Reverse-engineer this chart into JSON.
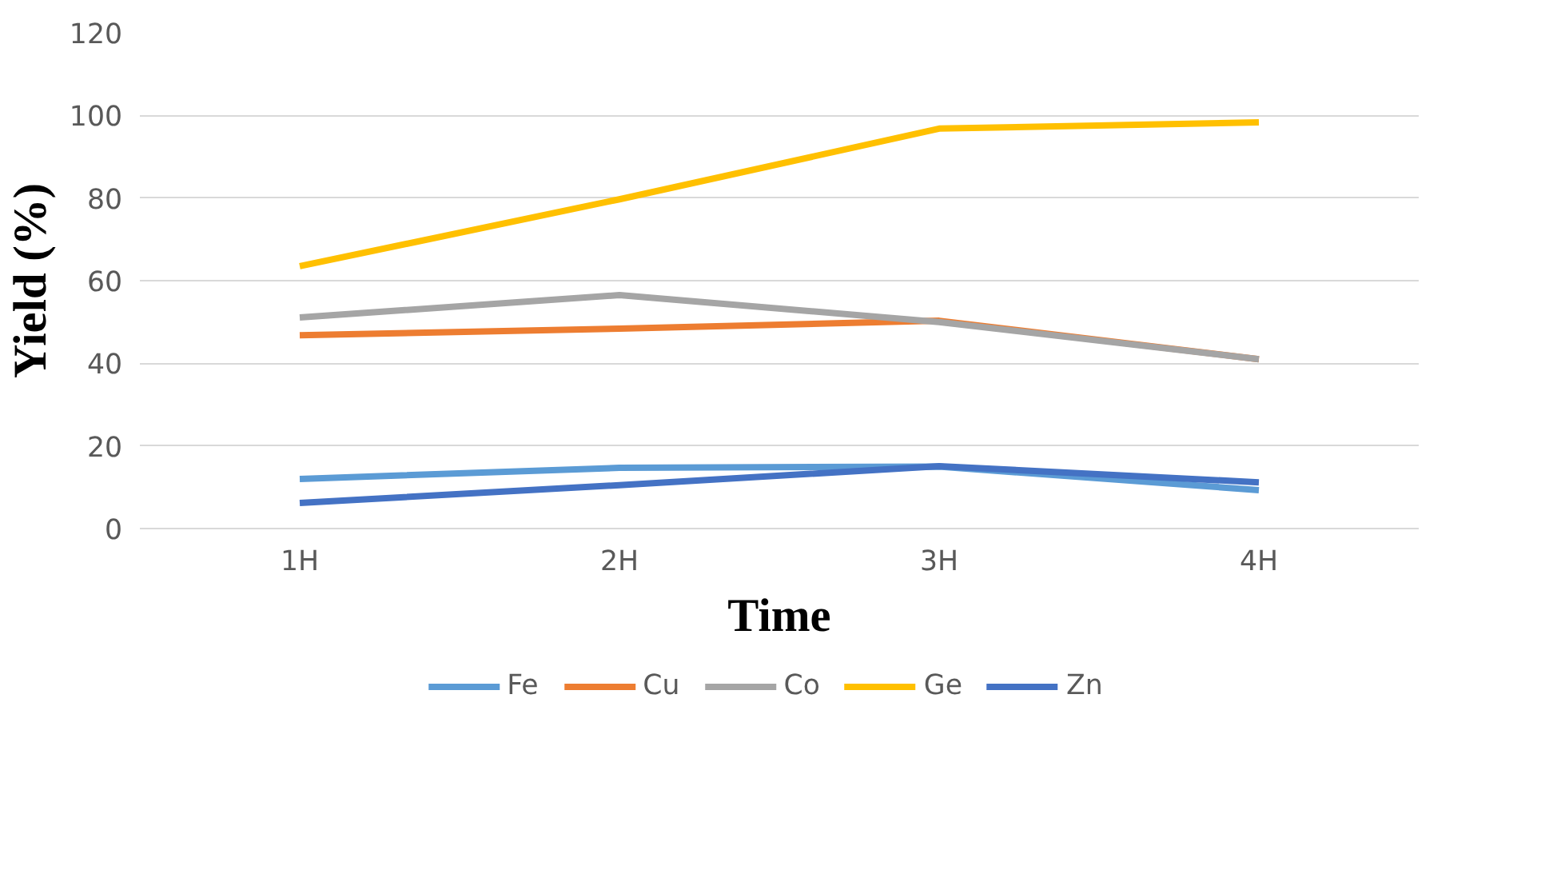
{
  "chart_data": {
    "type": "line",
    "xlabel": "Time",
    "ylabel": "Yield (%)",
    "categories": [
      "1H",
      "2H",
      "3H",
      "4H"
    ],
    "ylim": [
      0,
      120
    ],
    "yticks": [
      0,
      20,
      40,
      60,
      80,
      100,
      120
    ],
    "grid": "y",
    "legend": "bottom",
    "marker": "none",
    "line_style": "solid",
    "series": [
      {
        "name": "Fe",
        "color": "#5b9bd5",
        "values": [
          12,
          14.7,
          15,
          9.3
        ]
      },
      {
        "name": "Cu",
        "color": "#ed7d31",
        "values": [
          46.8,
          48.4,
          50.3,
          41
        ]
      },
      {
        "name": "Co",
        "color": "#a5a5a5",
        "values": [
          51.1,
          56.5,
          50,
          41
        ]
      },
      {
        "name": "Ge",
        "color": "#ffc000",
        "values": [
          63.5,
          79.7,
          96.8,
          98.3
        ]
      },
      {
        "name": "Zn",
        "color": "#4472c4",
        "values": [
          6.2,
          10.5,
          15.1,
          11.2
        ]
      }
    ]
  }
}
